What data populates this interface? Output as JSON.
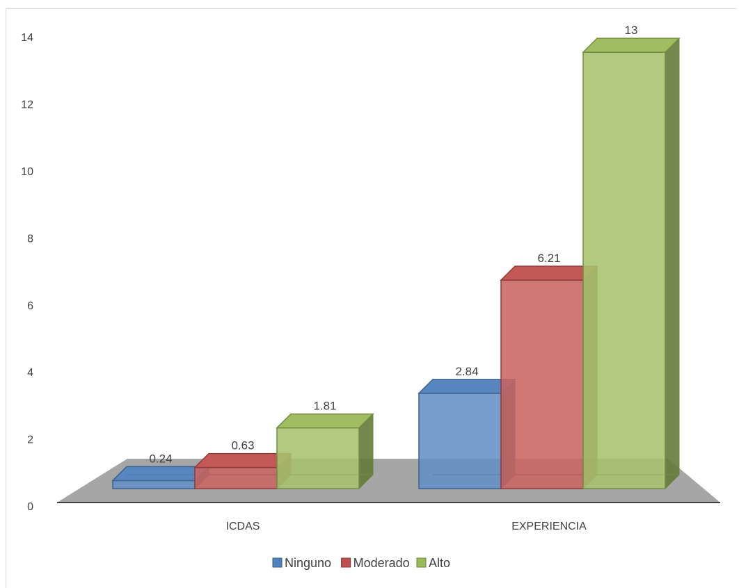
{
  "chart_data": {
    "type": "bar",
    "categories": [
      "ICDAS",
      "EXPERIENCIA"
    ],
    "series": [
      {
        "name": "Ninguno",
        "values": [
          0.24,
          2.84
        ],
        "labels": [
          "0.24",
          "2.84"
        ],
        "color": "#4f81bd"
      },
      {
        "name": "Moderado",
        "values": [
          0.63,
          6.21
        ],
        "labels": [
          "0.63",
          "6.21"
        ],
        "color": "#c0504d"
      },
      {
        "name": "Alto",
        "values": [
          1.81,
          13
        ],
        "labels": [
          "1.81",
          "13"
        ],
        "color": "#9bbb59"
      }
    ],
    "ylim": [
      0,
      14
    ],
    "yticks": [
      "0",
      "2",
      "4",
      "6",
      "8",
      "10",
      "12",
      "14"
    ],
    "grid": false,
    "legend": "bottom",
    "style": "3d-column"
  }
}
